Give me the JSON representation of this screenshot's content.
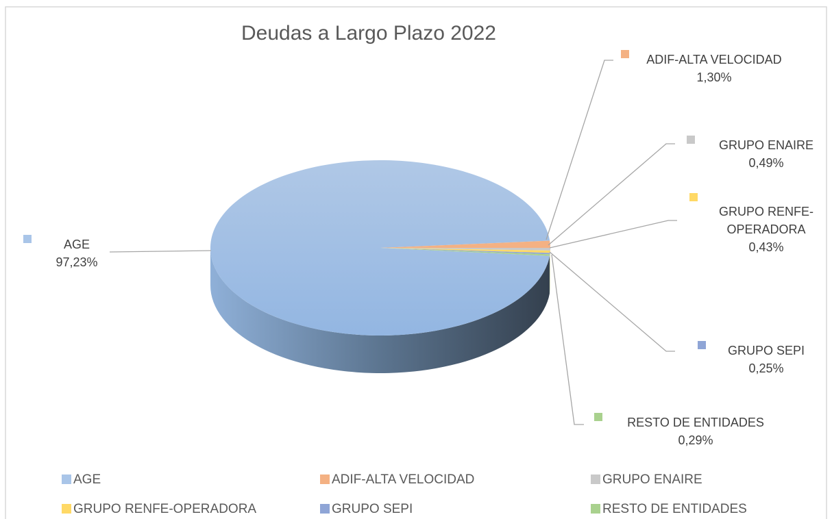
{
  "chart_data": {
    "type": "pie",
    "title": "Deudas a Largo Plazo 2022",
    "categories": [
      "AGE",
      "ADIF-ALTA VELOCIDAD",
      "GRUPO ENAIRE",
      "GRUPO RENFE-OPERADORA",
      "GRUPO SEPI",
      "RESTO DE ENTIDADES"
    ],
    "values": [
      97.23,
      1.3,
      0.49,
      0.43,
      0.25,
      0.29
    ],
    "value_labels": [
      "97,23%",
      "1,30%",
      "0,49%",
      "0,43%",
      "0,25%",
      "0,29%"
    ],
    "colors": [
      "#a9c5e8",
      "#f4b183",
      "#c9c9c9",
      "#ffd966",
      "#8fa5d6",
      "#a9d18e"
    ],
    "legend": "bottom"
  }
}
